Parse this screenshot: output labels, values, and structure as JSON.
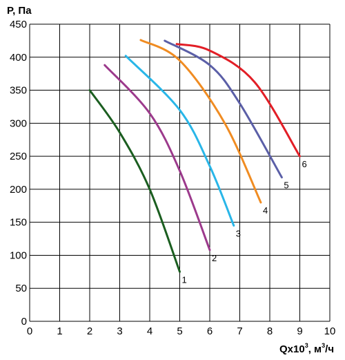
{
  "chart_data": {
    "type": "line",
    "ylabel": "P, Па",
    "xlabel": {
      "pre": "Qx10",
      "sup1": "3",
      "mid": ", м",
      "sup2": "3",
      "post": "/ч"
    },
    "xlim": [
      0,
      10
    ],
    "ylim": [
      0,
      450
    ],
    "x_ticks": [
      0,
      1,
      2,
      3,
      4,
      5,
      6,
      7,
      8,
      9,
      10
    ],
    "y_ticks": [
      0,
      50,
      100,
      150,
      200,
      250,
      300,
      350,
      400,
      450
    ],
    "grid": true,
    "series": [
      {
        "name": "1",
        "color": "#1b5e20",
        "x": [
          2.0,
          3.0,
          4.0,
          5.0
        ],
        "y": [
          350,
          286,
          200,
          75
        ]
      },
      {
        "name": "2",
        "color": "#9c3a8c",
        "x": [
          2.5,
          4.0,
          5.0,
          6.0
        ],
        "y": [
          388,
          315,
          228,
          108
        ]
      },
      {
        "name": "3",
        "color": "#29b6e8",
        "x": [
          3.2,
          5.0,
          6.0,
          6.8
        ],
        "y": [
          402,
          320,
          235,
          145
        ]
      },
      {
        "name": "4",
        "color": "#f08c22",
        "x": [
          3.7,
          5.0,
          6.5,
          7.7
        ],
        "y": [
          426,
          395,
          300,
          180
        ]
      },
      {
        "name": "5",
        "color": "#5b5fa7",
        "x": [
          4.5,
          6.0,
          7.0,
          8.4
        ],
        "y": [
          425,
          388,
          330,
          218
        ]
      },
      {
        "name": "6",
        "color": "#e21e26",
        "x": [
          4.9,
          6.0,
          7.5,
          9.0
        ],
        "y": [
          420,
          410,
          362,
          250
        ]
      }
    ]
  }
}
